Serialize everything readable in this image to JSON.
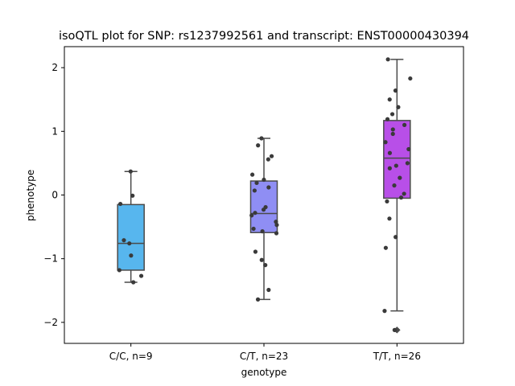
{
  "chart_data": {
    "type": "box",
    "title": "isoQTL plot for SNP: rs1237992561 and transcript: ENST00000430394",
    "xlabel": "genotype",
    "ylabel": "phenotype",
    "ylim": [
      -2.33,
      2.33
    ],
    "yticks": [
      -2,
      -1,
      0,
      1,
      2
    ],
    "yticklabels": [
      "−2",
      "−1",
      "0",
      "1",
      "2"
    ],
    "grid": false,
    "point_color": "#3a3a3a",
    "categories": [
      "C/C, n=9",
      "C/T, n=23",
      "T/T, n=26"
    ],
    "boxes": [
      {
        "label": "C/C, n=9",
        "color": "#57b6ee",
        "whisker_low": -1.37,
        "q1": -1.18,
        "median": -0.76,
        "q3": -0.15,
        "whisker_high": 0.37,
        "outliers": []
      },
      {
        "label": "C/T, n=23",
        "color": "#8f8ef4",
        "whisker_low": -1.64,
        "q1": -0.59,
        "median": -0.29,
        "q3": 0.22,
        "whisker_high": 0.89,
        "outliers": []
      },
      {
        "label": "T/T, n=26",
        "color": "#b84fe8",
        "whisker_low": -1.82,
        "q1": -0.05,
        "median": 0.58,
        "q3": 1.17,
        "whisker_high": 2.13,
        "outliers": [
          -2.12
        ]
      }
    ],
    "points": [
      [
        0.37,
        -0.01,
        -0.14,
        -0.71,
        -0.76,
        -0.95,
        -1.18,
        -1.27,
        -1.37
      ],
      [
        0.89,
        0.78,
        0.61,
        0.56,
        0.32,
        0.24,
        0.19,
        0.12,
        0.07,
        -0.19,
        -0.23,
        -0.28,
        -0.32,
        -0.42,
        -0.47,
        -0.53,
        -0.57,
        -0.6,
        -0.89,
        -1.02,
        -1.1,
        -1.49,
        -1.64
      ],
      [
        2.13,
        1.83,
        1.64,
        1.5,
        1.38,
        1.27,
        1.19,
        1.1,
        1.03,
        0.96,
        0.83,
        0.72,
        0.66,
        0.5,
        0.46,
        0.42,
        0.27,
        0.15,
        0.02,
        -0.04,
        -0.1,
        -0.37,
        -0.66,
        -0.83,
        -1.82,
        -2.12
      ]
    ]
  }
}
